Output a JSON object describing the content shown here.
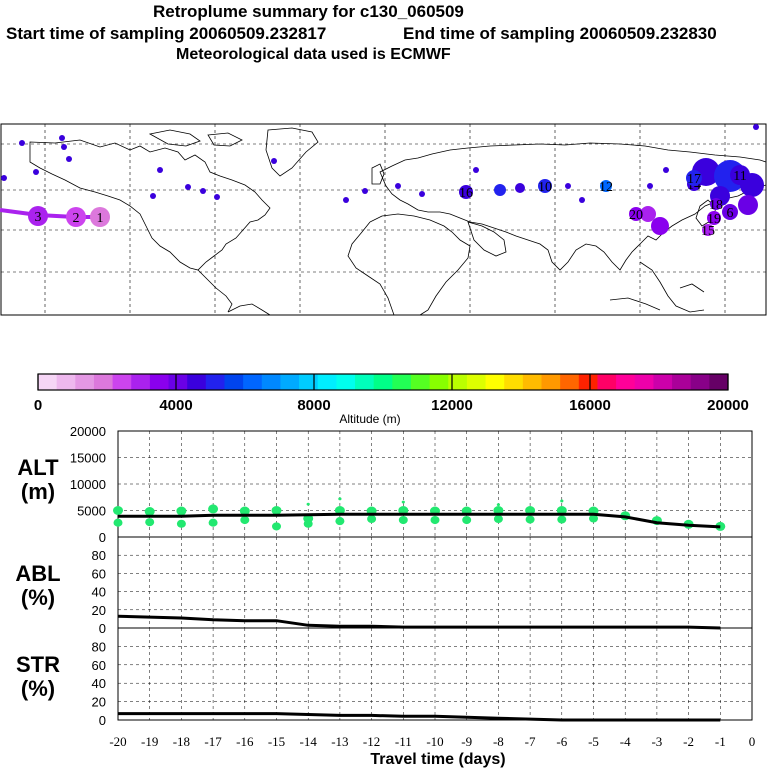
{
  "header": {
    "title": "Retroplume summary for c130_060509",
    "start_label": "Start time of sampling 20060509.232817",
    "end_label": "End time of sampling 20060509.232830",
    "met_label": "Meteorological data used is ECMWF"
  },
  "colors": {
    "altitude_scale": [
      "#f6d6f6",
      "#eeb8ee",
      "#e498e4",
      "#dc78dc",
      "#cc44ee",
      "#aa22ee",
      "#8a00ee",
      "#6a00e6",
      "#3a00dd",
      "#2222ee",
      "#0044ee",
      "#0066ff",
      "#0088ff",
      "#00aaff",
      "#00ccff",
      "#00eeff",
      "#00ffee",
      "#00ffbb",
      "#00ff88",
      "#22ff55",
      "#55ff22",
      "#88ff00",
      "#bbff00",
      "#ddff00",
      "#ffff00",
      "#ffdd00",
      "#ffbb00",
      "#ff9900",
      "#ff6600",
      "#ff2200",
      "#ff0066",
      "#ff0099",
      "#ee00aa",
      "#cc00aa",
      "#aa0099",
      "#880088",
      "#660066"
    ],
    "alt_marker": "#22e870",
    "line": "#000000"
  },
  "chart_data": [
    {
      "type": "map",
      "title": "Retroplume trajectory map",
      "plume_labels": [
        "3",
        "2",
        "1",
        "16",
        "10",
        "12",
        "20",
        "15",
        "18",
        "14",
        "19",
        "6",
        "17",
        "11"
      ]
    },
    {
      "type": "colorbar",
      "xlabel": "Altitude (m)",
      "range": [
        0,
        20000
      ],
      "tick_labels": [
        "0",
        "4000",
        "8000",
        "12000",
        "16000",
        "20000"
      ]
    },
    {
      "type": "line",
      "ylabel": "ALT (m)",
      "ylabel_line1": "ALT",
      "ylabel_line2": "(m)",
      "ylim": [
        0,
        20000
      ],
      "y_ticks": [
        "0",
        "5000",
        "10000",
        "15000",
        "20000"
      ],
      "x": [
        -20,
        -19,
        -18,
        -17,
        -16,
        -15,
        -14,
        -13,
        -12,
        -11,
        -10,
        -9,
        -8,
        -7,
        -6,
        -5,
        -4,
        -3,
        -2,
        -1
      ],
      "mean_altitude": [
        3900,
        3900,
        3900,
        4100,
        4100,
        4100,
        4200,
        4300,
        4300,
        4300,
        4300,
        4300,
        4300,
        4300,
        4300,
        4300,
        3800,
        2700,
        2200,
        1900
      ],
      "marker_rows": {
        "upper": [
          5000,
          4800,
          4900,
          5300,
          4900,
          5000,
          3500,
          5000,
          4900,
          5000,
          4900,
          4900,
          5000,
          5000,
          5000,
          4900,
          4000,
          3100,
          2400,
          2000
        ],
        "lower": [
          2700,
          2800,
          2500,
          2700,
          3200,
          2000,
          2500,
          3000,
          3400,
          3200,
          3200,
          3200,
          3400,
          3300,
          3300,
          3500,
          null,
          null,
          null,
          null
        ],
        "top": [
          null,
          null,
          null,
          null,
          null,
          null,
          6200,
          7200,
          null,
          6600,
          null,
          null,
          6100,
          null,
          6800,
          null,
          null,
          null,
          null,
          null
        ]
      }
    },
    {
      "type": "line",
      "ylabel": "ABL (%)",
      "ylabel_line1": "ABL",
      "ylabel_line2": "(%)",
      "ylim": [
        0,
        100
      ],
      "y_ticks": [
        "0",
        "20",
        "40",
        "60",
        "80"
      ],
      "x": [
        -20,
        -19,
        -18,
        -17,
        -16,
        -15,
        -14,
        -13,
        -12,
        -11,
        -10,
        -9,
        -8,
        -7,
        -6,
        -5,
        -4,
        -3,
        -2,
        -1
      ],
      "values": [
        13,
        12,
        11,
        9,
        8,
        8,
        3,
        2,
        2,
        1,
        1,
        1,
        1,
        1,
        1,
        1,
        1,
        1,
        1,
        0
      ]
    },
    {
      "type": "line",
      "ylabel": "STR (%)",
      "ylabel_line1": "STR",
      "ylabel_line2": "(%)",
      "ylim": [
        0,
        100
      ],
      "y_ticks": [
        "0",
        "20",
        "40",
        "60",
        "80"
      ],
      "x": [
        -20,
        -19,
        -18,
        -17,
        -16,
        -15,
        -14,
        -13,
        -12,
        -11,
        -10,
        -9,
        -8,
        -7,
        -6,
        -5,
        -4,
        -3,
        -2,
        -1
      ],
      "values": [
        7,
        7,
        7,
        7,
        7,
        7,
        6,
        5,
        5,
        4,
        4,
        3,
        2,
        1,
        0,
        0,
        0,
        0,
        0,
        0
      ],
      "xlabel": "Travel time (days)",
      "x_ticks": [
        "-20",
        "-19",
        "-18",
        "-17",
        "-16",
        "-15",
        "-14",
        "-13",
        "-12",
        "-11",
        "-10",
        "-9",
        "-8",
        "-7",
        "-6",
        "-5",
        "-4",
        "-3",
        "-2",
        "-1",
        "0"
      ]
    }
  ]
}
